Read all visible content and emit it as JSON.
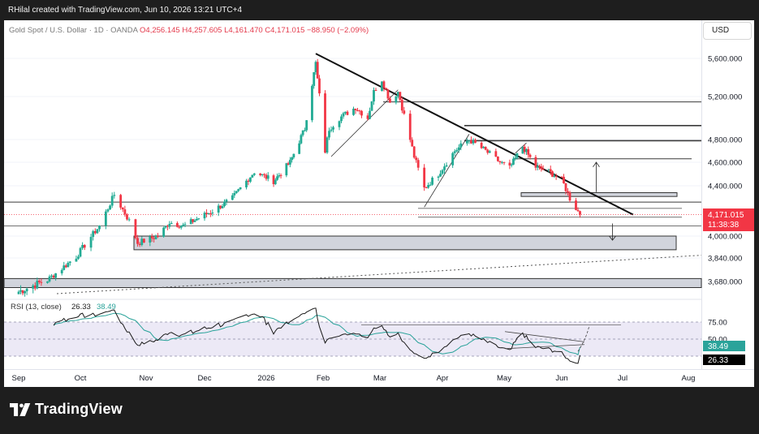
{
  "header": {
    "caption": "RHilal created with TradingView.com, Jun 10, 2026 13:21 UTC+4",
    "symbol": "Gold Spot / U.S. Dollar · 1D · OANDA",
    "open": "O4,256.145",
    "high": "H4,257.605",
    "low": "L4,161.470",
    "close": "C4,171.015",
    "change": "−88.950 (−2.09%)"
  },
  "currency_button": "USD",
  "price_label": {
    "value": "4,171.015",
    "countdown": "11:38:38"
  },
  "rsi_header": {
    "label": "RSI (13, close)",
    "value1": "26.33",
    "value2": "38.49"
  },
  "rsi_labels": {
    "ma": "38.49",
    "rsi": "26.33"
  },
  "brand": "TradingView",
  "colors": {
    "up": "#22ab94",
    "down": "#f23645",
    "rsi": "#1a1a1a",
    "rsi_ma": "#2aa39a",
    "rsi_band": "#ece9f6"
  },
  "chart_data": {
    "type": "candlestick",
    "title": "Gold Spot / U.S. Dollar · 1D · OANDA",
    "x_ticks": [
      "Sep",
      "Oct",
      "Nov",
      "Dec",
      "2026",
      "Feb",
      "Mar",
      "Apr",
      "May",
      "Jun",
      "Jul",
      "Aug"
    ],
    "y_ticks": [
      "5,600.000",
      "5,200.000",
      "4,800.000",
      "4,600.000",
      "4,400.000",
      "4,000.000",
      "3,840.000",
      "3,680.000"
    ],
    "ylim": [
      3620,
      5720
    ],
    "anchors": [
      {
        "date": "2025-09-01",
        "close": 3630
      },
      {
        "date": "2025-09-15",
        "close": 3690
      },
      {
        "date": "2025-09-29",
        "close": 3850
      },
      {
        "date": "2025-10-10",
        "close": 4080
      },
      {
        "date": "2025-10-17",
        "close": 4330
      },
      {
        "date": "2025-10-24",
        "close": 4120
      },
      {
        "date": "2025-10-28",
        "close": 3950
      },
      {
        "date": "2025-11-07",
        "close": 4000
      },
      {
        "date": "2025-11-13",
        "close": 4110
      },
      {
        "date": "2025-11-20",
        "close": 4080
      },
      {
        "date": "2025-12-05",
        "close": 4200
      },
      {
        "date": "2025-12-15",
        "close": 4300
      },
      {
        "date": "2025-12-26",
        "close": 4520
      },
      {
        "date": "2026-01-05",
        "close": 4440
      },
      {
        "date": "2026-01-14",
        "close": 4600
      },
      {
        "date": "2026-01-22",
        "close": 4900
      },
      {
        "date": "2026-01-28",
        "close": 5550
      },
      {
        "date": "2026-02-02",
        "close": 4700
      },
      {
        "date": "2026-02-04",
        "close": 4900
      },
      {
        "date": "2026-02-09",
        "close": 5000
      },
      {
        "date": "2026-02-17",
        "close": 5100
      },
      {
        "date": "2026-02-23",
        "close": 5000
      },
      {
        "date": "2026-02-26",
        "close": 5250
      },
      {
        "date": "2026-03-02",
        "close": 5380
      },
      {
        "date": "2026-03-06",
        "close": 5150
      },
      {
        "date": "2026-03-10",
        "close": 5250
      },
      {
        "date": "2026-03-18",
        "close": 4650
      },
      {
        "date": "2026-03-23",
        "close": 4380
      },
      {
        "date": "2026-03-30",
        "close": 4500
      },
      {
        "date": "2026-04-07",
        "close": 4700
      },
      {
        "date": "2026-04-14",
        "close": 4800
      },
      {
        "date": "2026-04-22",
        "close": 4700
      },
      {
        "date": "2026-04-29",
        "close": 4600
      },
      {
        "date": "2026-05-04",
        "close": 4550
      },
      {
        "date": "2026-05-11",
        "close": 4740
      },
      {
        "date": "2026-05-18",
        "close": 4560
      },
      {
        "date": "2026-05-25",
        "close": 4520
      },
      {
        "date": "2026-06-01",
        "close": 4450
      },
      {
        "date": "2026-06-05",
        "close": 4300
      },
      {
        "date": "2026-06-10",
        "close": 4171
      }
    ],
    "levels": [
      5150,
      4930,
      4790,
      4630,
      4270
    ],
    "zones": [
      [
        3900,
        4000
      ],
      [
        3650,
        3700
      ]
    ],
    "rsi_ticks": [
      "75.00",
      "50.00"
    ],
    "rsi_last": 26.33,
    "rsi_ma_last": 38.49
  }
}
